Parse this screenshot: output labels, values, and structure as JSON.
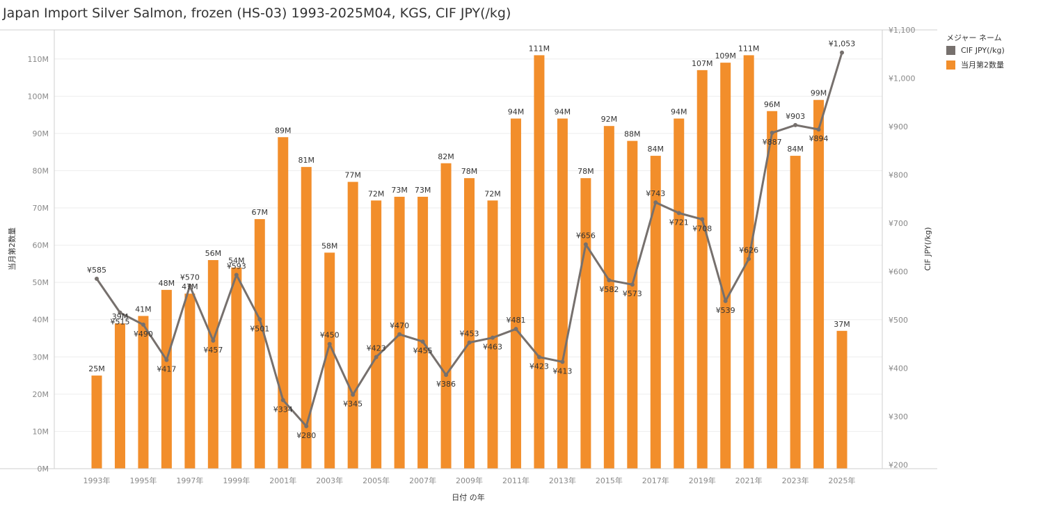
{
  "title": "Japan Import Silver Salmon, frozen (HS-03) 1993-2025M04, KGS, CIF JPY(/kg)",
  "legend": {
    "title": "メジャー ネーム",
    "items": [
      {
        "label": "CIF JPY(/kg)",
        "color": "#76706d"
      },
      {
        "label": "当月第2数量",
        "color": "#f28e2b"
      }
    ]
  },
  "chart_data": {
    "type": "bar",
    "x": [
      1993,
      1994,
      1995,
      1996,
      1997,
      1998,
      1999,
      2000,
      2001,
      2002,
      2003,
      2004,
      2005,
      2006,
      2007,
      2008,
      2009,
      2010,
      2011,
      2012,
      2013,
      2014,
      2015,
      2016,
      2017,
      2018,
      2019,
      2020,
      2021,
      2022,
      2023,
      2024,
      2025
    ],
    "xlabel": "日付 の年",
    "x_tick_labels": [
      "1993年",
      "1995年",
      "1997年",
      "1999年",
      "2001年",
      "2003年",
      "2005年",
      "2007年",
      "2009年",
      "2011年",
      "2013年",
      "2015年",
      "2017年",
      "2019年",
      "2021年",
      "2023年",
      "2025年"
    ],
    "x_tick_years": [
      1993,
      1995,
      1997,
      1999,
      2001,
      2003,
      2005,
      2007,
      2009,
      2011,
      2013,
      2015,
      2017,
      2019,
      2021,
      2023,
      2025
    ],
    "series": [
      {
        "name": "当月第2数量",
        "type": "bar",
        "axis": "left",
        "color": "#f28e2b",
        "values": [
          25,
          39,
          41,
          48,
          47,
          56,
          54,
          67,
          89,
          81,
          58,
          77,
          72,
          73,
          73,
          82,
          78,
          72,
          94,
          111,
          94,
          78,
          92,
          88,
          84,
          94,
          107,
          109,
          111,
          96,
          84,
          99,
          37
        ],
        "labels": [
          "25M",
          "39M",
          "41M",
          "48M",
          "47M",
          "56M",
          "54M",
          "67M",
          "89M",
          "81M",
          "58M",
          "77M",
          "72M",
          "73M",
          "73M",
          "82M",
          "78M",
          "72M",
          "94M",
          "111M",
          "94M",
          "78M",
          "92M",
          "88M",
          "84M",
          "94M",
          "107M",
          "109M",
          "111M",
          "96M",
          "84M",
          "99M",
          "37M"
        ]
      },
      {
        "name": "CIF JPY(/kg)",
        "type": "line",
        "axis": "right",
        "color": "#76706d",
        "values": [
          585,
          515,
          490,
          417,
          570,
          457,
          593,
          501,
          334,
          280,
          450,
          345,
          423,
          470,
          455,
          386,
          453,
          463,
          481,
          423,
          413,
          656,
          582,
          573,
          743,
          721,
          708,
          539,
          626,
          887,
          903,
          894,
          1053
        ],
        "labels": [
          "¥585",
          "¥515",
          "¥490",
          "¥417",
          "¥570",
          "¥457",
          "¥593",
          "¥501",
          "¥334",
          "¥280",
          "¥450",
          "¥345",
          "¥423",
          "¥470",
          "¥455",
          "¥386",
          "¥453",
          "¥463",
          "¥481",
          "¥423",
          "¥413",
          "¥656",
          "¥582",
          "¥573",
          "¥743",
          "¥721",
          "¥708",
          "¥539",
          "¥626",
          "¥887",
          "¥903",
          "¥894",
          "¥1,053"
        ]
      }
    ],
    "y_left": {
      "label": "当月第2数量",
      "unit": "M",
      "ylim": [
        0,
        117.8
      ],
      "ticks": [
        0,
        10,
        20,
        30,
        40,
        50,
        60,
        70,
        80,
        90,
        100,
        110
      ],
      "tick_labels": [
        "0M",
        "10M",
        "20M",
        "30M",
        "40M",
        "50M",
        "60M",
        "70M",
        "80M",
        "90M",
        "100M",
        "110M"
      ]
    },
    "y_right": {
      "label": "CIF JPY(/kg)",
      "ylim": [
        192,
        1100
      ],
      "ticks": [
        200,
        300,
        400,
        500,
        600,
        700,
        800,
        900,
        1000,
        1100
      ],
      "tick_labels": [
        "¥200",
        "¥300",
        "¥400",
        "¥500",
        "¥600",
        "¥700",
        "¥800",
        "¥900",
        "¥1,000",
        "¥1,100"
      ]
    },
    "grid": true,
    "legend_position": "right"
  }
}
